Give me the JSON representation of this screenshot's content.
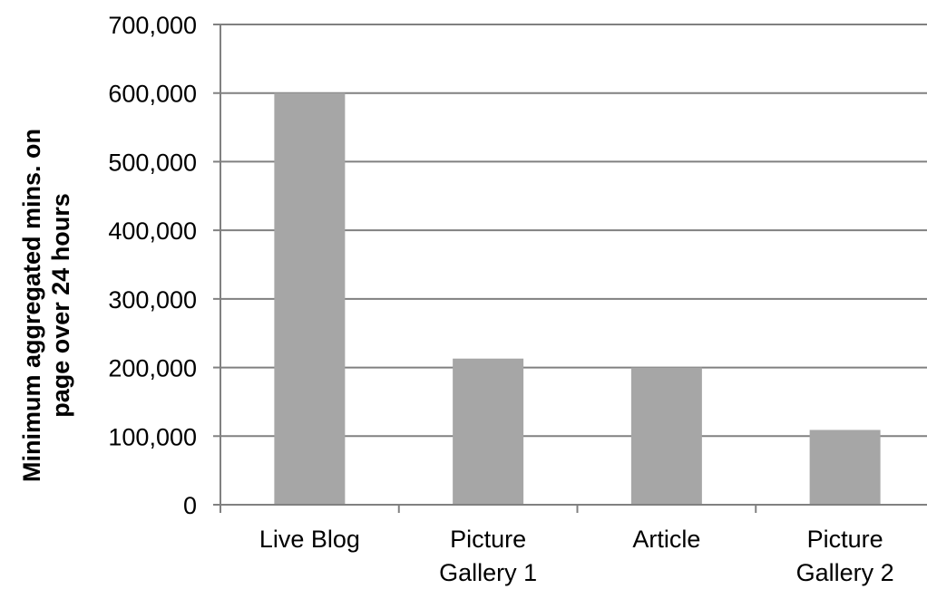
{
  "chart_data": {
    "type": "bar",
    "title": "",
    "xlabel": "",
    "ylabel": "Minimum aggregated mins. on page over 24 hours",
    "ylabel_lines": [
      "Minimum aggregated mins. on",
      "page over 24 hours"
    ],
    "categories": [
      "Live Blog",
      "Picture Gallery 1",
      "Article",
      "Picture Gallery 2"
    ],
    "category_lines": [
      [
        "Live Blog"
      ],
      [
        "Picture",
        "Gallery 1"
      ],
      [
        "Article"
      ],
      [
        "Picture",
        "Gallery 2"
      ]
    ],
    "values": [
      600000,
      213000,
      200000,
      109000
    ],
    "ylim": [
      0,
      700000
    ],
    "yticks": [
      0,
      100000,
      200000,
      300000,
      400000,
      500000,
      600000,
      700000
    ],
    "ytick_labels": [
      "0",
      "100,000",
      "200,000",
      "300,000",
      "400,000",
      "500,000",
      "600,000",
      "700,000"
    ],
    "grid": true,
    "legend": "none",
    "colors": {
      "bar": "#a6a6a6",
      "grid": "#808080",
      "axis": "#808080",
      "text": "#000000"
    }
  }
}
